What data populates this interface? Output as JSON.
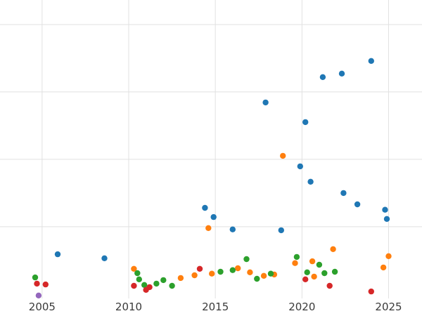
{
  "chart_data": {
    "type": "scatter",
    "title": "",
    "xlabel": "",
    "ylabel": "",
    "grid": true,
    "legend": "none",
    "background": "#ffffff",
    "grid_color": "#e1e1e1",
    "tick_label_color": "#3a3a3a",
    "tick_font_size": 15,
    "marker_radius": 4.2,
    "xlim": [
      2002.57,
      2026.93
    ],
    "ylim": [
      -8.1,
      109.1
    ],
    "x_tick_values": [
      2005,
      2010,
      2015,
      2020,
      2025
    ],
    "x_tick_labels": [
      "2005",
      "2010",
      "2015",
      "2020",
      "2025"
    ],
    "y_grid_values": [
      25,
      50,
      75,
      100
    ],
    "series": [
      {
        "name": "blue",
        "color": "#1f77b4",
        "points": [
          [
            2005.9,
            14.8
          ],
          [
            2008.6,
            13.3
          ],
          [
            2014.4,
            32.0
          ],
          [
            2014.9,
            28.6
          ],
          [
            2016.0,
            24.0
          ],
          [
            2017.9,
            71.1
          ],
          [
            2018.8,
            23.7
          ],
          [
            2019.9,
            47.4
          ],
          [
            2020.2,
            63.8
          ],
          [
            2020.5,
            41.7
          ],
          [
            2021.2,
            80.5
          ],
          [
            2022.3,
            81.8
          ],
          [
            2022.4,
            37.5
          ],
          [
            2023.2,
            33.3
          ],
          [
            2024.0,
            86.5
          ],
          [
            2024.8,
            31.3
          ],
          [
            2024.9,
            27.9
          ]
        ]
      },
      {
        "name": "orange",
        "color": "#ff7f0e",
        "points": [
          [
            2010.3,
            9.4
          ],
          [
            2013.0,
            6.0
          ],
          [
            2013.8,
            7.0
          ],
          [
            2014.6,
            24.5
          ],
          [
            2014.8,
            7.6
          ],
          [
            2016.3,
            9.6
          ],
          [
            2017.0,
            8.1
          ],
          [
            2017.8,
            6.8
          ],
          [
            2018.4,
            7.3
          ],
          [
            2018.9,
            51.3
          ],
          [
            2019.6,
            11.5
          ],
          [
            2020.6,
            12.2
          ],
          [
            2020.7,
            6.5
          ],
          [
            2021.8,
            16.7
          ],
          [
            2024.7,
            9.9
          ],
          [
            2025.0,
            14.1
          ]
        ]
      },
      {
        "name": "green",
        "color": "#2ca02c",
        "points": [
          [
            2004.6,
            6.2
          ],
          [
            2010.5,
            7.8
          ],
          [
            2010.6,
            5.5
          ],
          [
            2010.9,
            3.4
          ],
          [
            2011.6,
            3.9
          ],
          [
            2012.0,
            5.2
          ],
          [
            2012.5,
            3.1
          ],
          [
            2015.3,
            8.3
          ],
          [
            2016.0,
            8.9
          ],
          [
            2016.8,
            13.0
          ],
          [
            2017.4,
            5.7
          ],
          [
            2018.2,
            7.6
          ],
          [
            2019.7,
            13.8
          ],
          [
            2020.3,
            8.1
          ],
          [
            2021.0,
            10.9
          ],
          [
            2021.3,
            7.8
          ],
          [
            2021.9,
            8.3
          ]
        ]
      },
      {
        "name": "red",
        "color": "#d62728",
        "points": [
          [
            2004.7,
            3.9
          ],
          [
            2005.2,
            3.6
          ],
          [
            2010.3,
            3.1
          ],
          [
            2011.0,
            1.6
          ],
          [
            2011.2,
            2.6
          ],
          [
            2014.1,
            9.4
          ],
          [
            2020.2,
            5.5
          ],
          [
            2021.6,
            3.1
          ],
          [
            2024.0,
            1.0
          ]
        ]
      },
      {
        "name": "purple",
        "color": "#9467bd",
        "points": [
          [
            2004.8,
            -0.5
          ]
        ]
      }
    ]
  }
}
